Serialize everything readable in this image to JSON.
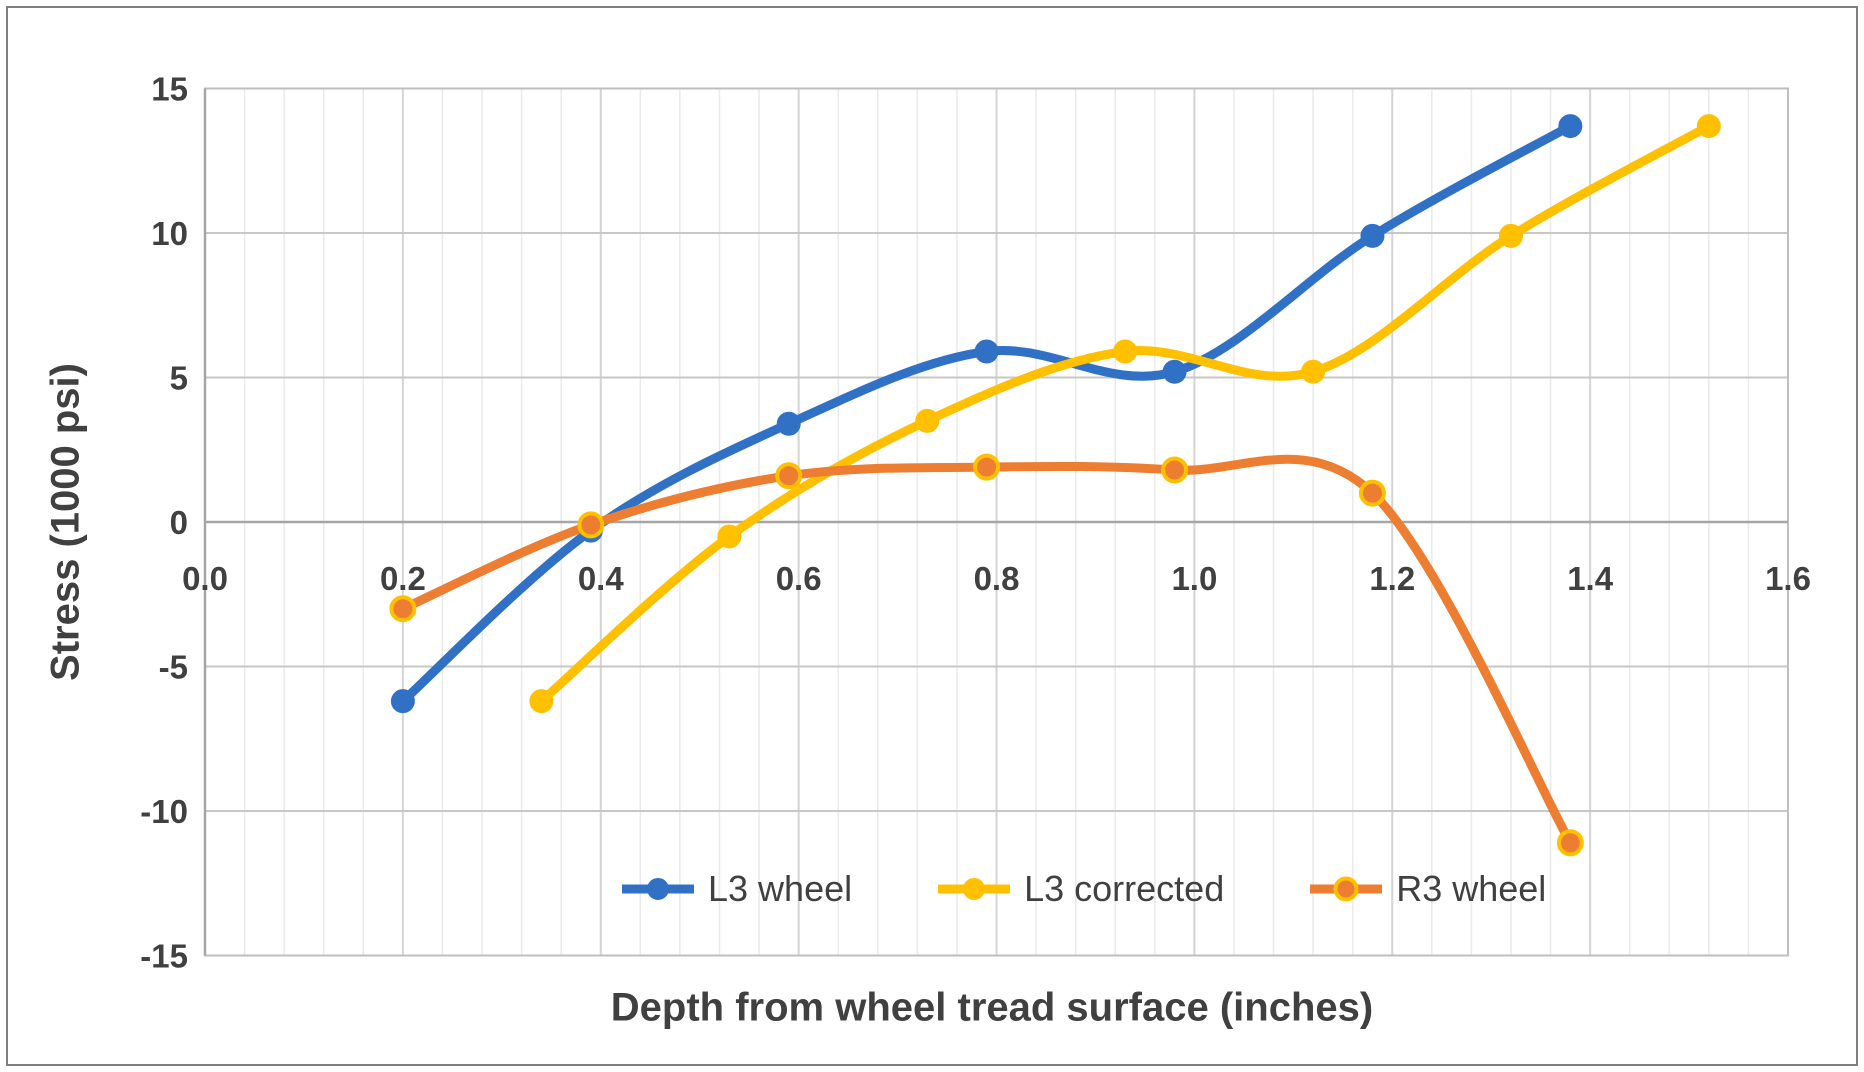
{
  "frame": {
    "border_color": "#7f7f7f",
    "background": "#ffffff"
  },
  "chart_data": {
    "type": "line",
    "smooth": true,
    "title": "",
    "xlabel": "Depth from wheel tread surface (inches)",
    "ylabel": "Stress (1000 psi)",
    "xlim": [
      0,
      1.6
    ],
    "ylim": [
      -15,
      15
    ],
    "x_major_unit": 0.2,
    "x_minor_unit": 0.04,
    "y_major_unit": 5,
    "x_tick_labels": [
      "0.0",
      "0.2",
      "0.4",
      "0.6",
      "0.8",
      "1.0",
      "1.2",
      "1.4",
      "1.6"
    ],
    "y_tick_labels": [
      "15",
      "10",
      "5",
      "0",
      "-5",
      "-10",
      "-15"
    ],
    "grid": {
      "vertical_minor": true,
      "horizontal_minor": false,
      "legend_position": "inside-bottom"
    },
    "series": [
      {
        "name": "L3 wheel",
        "color": "#3070C5",
        "x": [
          0.2,
          0.39,
          0.59,
          0.79,
          0.98,
          1.18,
          1.38
        ],
        "y": [
          -6.2,
          -0.3,
          3.4,
          5.9,
          5.2,
          9.9,
          13.7
        ]
      },
      {
        "name": "L3 corrected",
        "color": "#FFC000",
        "x": [
          0.34,
          0.53,
          0.73,
          0.93,
          1.12,
          1.32,
          1.52
        ],
        "y": [
          -6.2,
          -0.5,
          3.5,
          5.9,
          5.2,
          9.9,
          13.7
        ]
      },
      {
        "name": "R3 wheel",
        "color": "#ED7D31",
        "marker_ring": "#FFC000",
        "x": [
          0.2,
          0.39,
          0.59,
          0.79,
          0.98,
          1.18,
          1.38
        ],
        "y": [
          -3.0,
          -0.1,
          1.6,
          1.9,
          1.8,
          1.0,
          -11.1
        ]
      }
    ]
  },
  "style": {
    "tick_color": "#404040",
    "title_color": "#404040",
    "legend_color": "#404040",
    "grid_minor": "#EAEAEA",
    "grid_major_v": "#D4D4D4",
    "grid_major_h": "#C7C7C7",
    "axis_line": "#A6A6A6",
    "plot_border": "#BFBFBF"
  }
}
